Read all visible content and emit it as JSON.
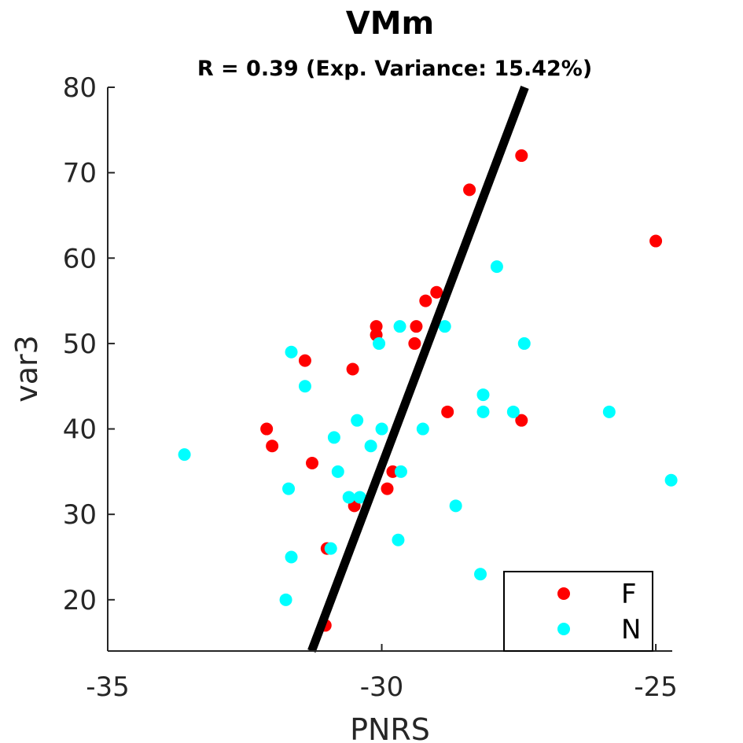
{
  "chart_data": {
    "type": "scatter",
    "title": "VMm",
    "subtitle": "R = 0.39 (Exp. Variance: 15.42%)",
    "xlabel": "PNRS",
    "ylabel": "var3",
    "xlim": [
      -35,
      -24.7
    ],
    "ylim": [
      14,
      80
    ],
    "xticks": [
      -35,
      -30,
      -25
    ],
    "xtick_labels": [
      "-35",
      "-30",
      "-25"
    ],
    "yticks": [
      20,
      30,
      40,
      50,
      60,
      70,
      80
    ],
    "ytick_labels": [
      "20",
      "30",
      "40",
      "50",
      "60",
      "70",
      "80"
    ],
    "grid": false,
    "legend": {
      "placement": "bottom-right"
    },
    "fit_line": {
      "color": "#000000",
      "points": [
        [
          -31.28,
          14
        ],
        [
          -27.39,
          80
        ]
      ]
    },
    "series": [
      {
        "name": "F",
        "color": "#ff0000",
        "points": [
          [
            -32.1,
            40
          ],
          [
            -32.0,
            38
          ],
          [
            -31.4,
            48
          ],
          [
            -31.27,
            36
          ],
          [
            -31.0,
            26
          ],
          [
            -31.03,
            17
          ],
          [
            -30.53,
            47
          ],
          [
            -30.5,
            31
          ],
          [
            -30.1,
            52
          ],
          [
            -30.1,
            51
          ],
          [
            -29.9,
            33
          ],
          [
            -29.8,
            35
          ],
          [
            -29.37,
            52
          ],
          [
            -29.4,
            50
          ],
          [
            -29.2,
            55
          ],
          [
            -29.0,
            56
          ],
          [
            -28.8,
            42
          ],
          [
            -28.4,
            68
          ],
          [
            -27.45,
            72
          ],
          [
            -27.45,
            41
          ],
          [
            -25.0,
            62
          ]
        ]
      },
      {
        "name": "N",
        "color": "#00ffff",
        "points": [
          [
            -33.6,
            37
          ],
          [
            -31.7,
            33
          ],
          [
            -31.65,
            49
          ],
          [
            -31.65,
            25
          ],
          [
            -31.75,
            20
          ],
          [
            -31.4,
            45
          ],
          [
            -30.87,
            39
          ],
          [
            -30.8,
            35
          ],
          [
            -30.93,
            26
          ],
          [
            -30.6,
            32
          ],
          [
            -30.45,
            41
          ],
          [
            -30.4,
            32
          ],
          [
            -30.2,
            38
          ],
          [
            -30.0,
            40
          ],
          [
            -30.05,
            50
          ],
          [
            -29.67,
            52
          ],
          [
            -29.65,
            35
          ],
          [
            -29.7,
            27
          ],
          [
            -29.25,
            40
          ],
          [
            -28.85,
            52
          ],
          [
            -28.65,
            31
          ],
          [
            -28.2,
            23
          ],
          [
            -28.15,
            44
          ],
          [
            -28.15,
            42
          ],
          [
            -27.9,
            59
          ],
          [
            -27.6,
            42
          ],
          [
            -27.4,
            50
          ],
          [
            -25.85,
            42
          ],
          [
            -24.72,
            34
          ]
        ]
      }
    ]
  }
}
